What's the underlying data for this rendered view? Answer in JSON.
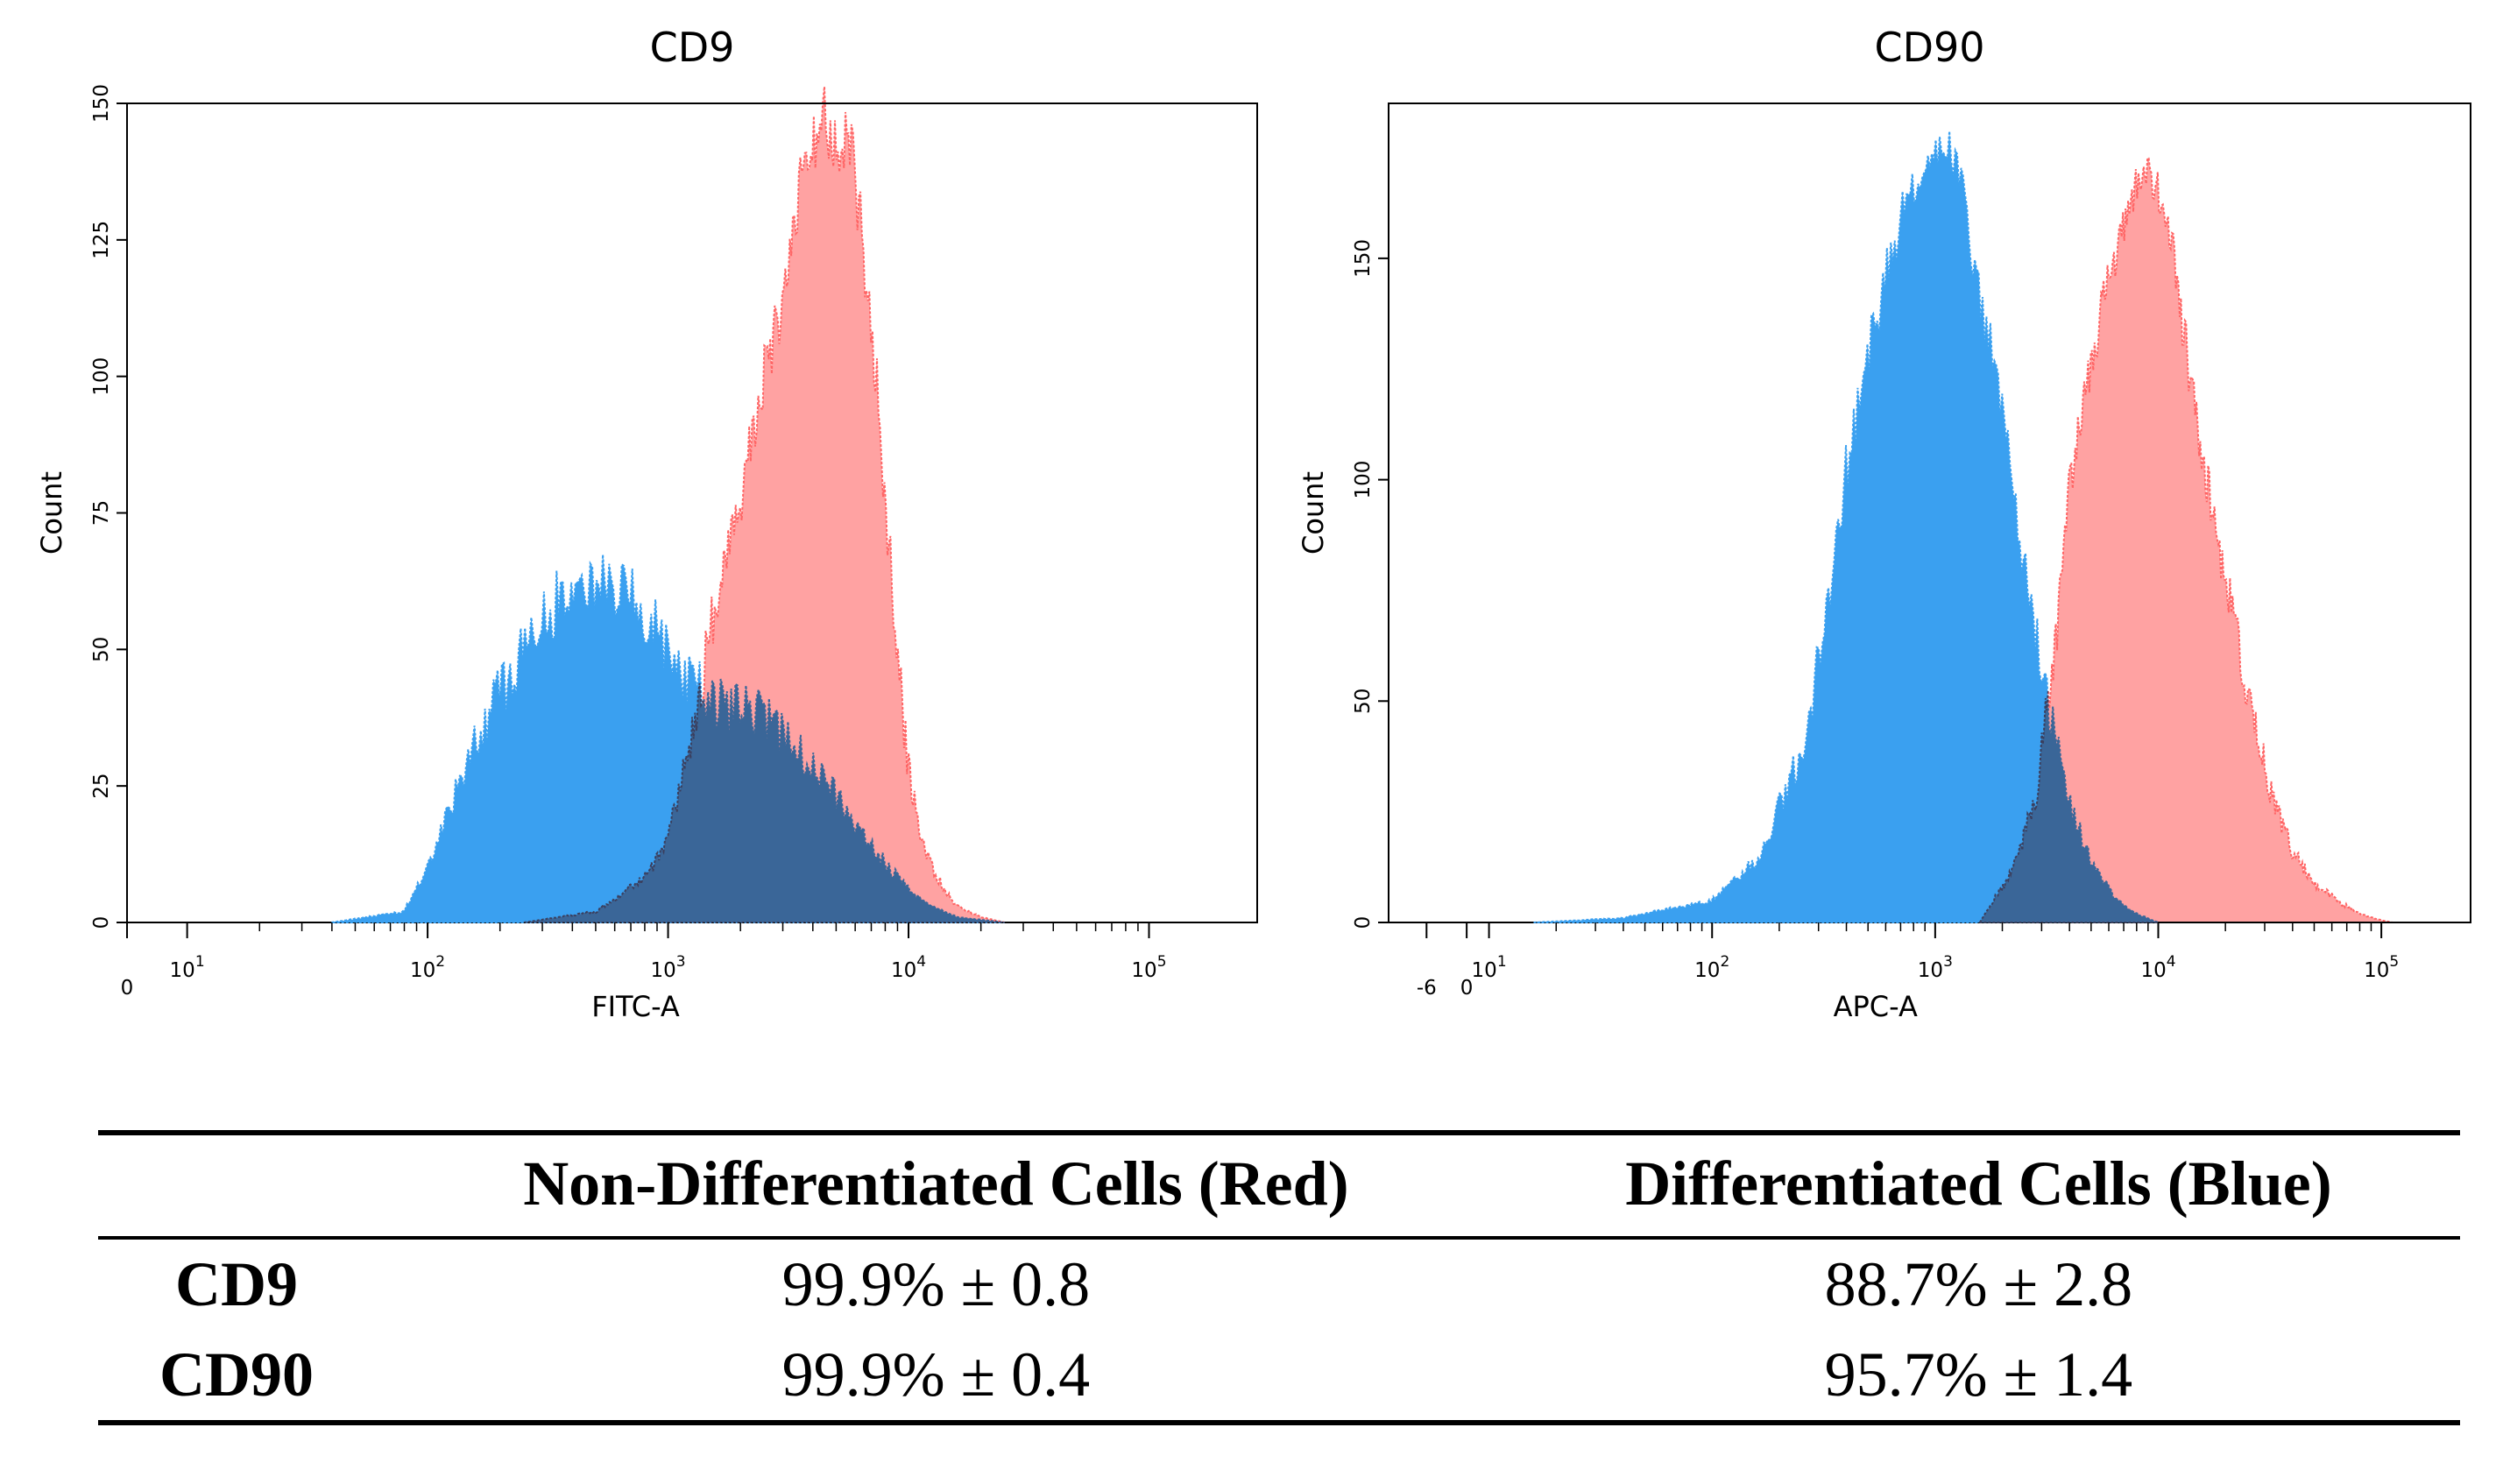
{
  "chart_data": [
    {
      "type": "area",
      "title": "CD9",
      "xlabel": "FITC-A",
      "ylabel": "Count",
      "xscale": "log",
      "xlim_log10": [
        0.75,
        5.45
      ],
      "ylim": [
        0,
        150
      ],
      "y_ticks": [
        "0",
        "25",
        "50",
        "75",
        "100",
        "125",
        "150"
      ],
      "x_ticks": [
        {
          "label": "0",
          "log": 0.75
        },
        {
          "label": "10",
          "sup": "1",
          "log": 1
        },
        {
          "label": "10",
          "sup": "2",
          "log": 2
        },
        {
          "label": "10",
          "sup": "3",
          "log": 3
        },
        {
          "label": "10",
          "sup": "4",
          "log": 4
        },
        {
          "label": "10",
          "sup": "5",
          "log": 5
        }
      ],
      "series": [
        {
          "name": "Differentiated Cells (Blue)",
          "color": "#3aa0f0",
          "x_log10": [
            1.6,
            1.9,
            2.0,
            2.1,
            2.2,
            2.3,
            2.4,
            2.5,
            2.6,
            2.7,
            2.8,
            2.9,
            3.0,
            3.1,
            3.2,
            3.3,
            3.4,
            3.5,
            3.6,
            3.7,
            3.8,
            3.9,
            4.0,
            4.1,
            4.2,
            4.3,
            4.4
          ],
          "values": [
            0,
            2,
            10,
            22,
            33,
            42,
            50,
            57,
            61,
            63,
            61,
            57,
            50,
            44,
            40,
            39,
            38,
            34,
            29,
            23,
            17,
            11,
            6,
            3,
            1,
            0.5,
            0
          ]
        },
        {
          "name": "Non-Differentiated Cells (Red)",
          "color": "#ff6464",
          "x_log10": [
            2.4,
            2.7,
            2.9,
            3.0,
            3.1,
            3.2,
            3.3,
            3.4,
            3.5,
            3.55,
            3.6,
            3.65,
            3.7,
            3.75,
            3.8,
            3.85,
            3.9,
            3.95,
            4.0,
            4.05,
            4.1,
            4.15,
            4.2,
            4.3,
            4.4
          ],
          "values": [
            0,
            2,
            8,
            15,
            35,
            58,
            78,
            100,
            118,
            135,
            142,
            148,
            140,
            146,
            128,
            108,
            80,
            50,
            28,
            16,
            10,
            6,
            3,
            1,
            0
          ]
        }
      ]
    },
    {
      "type": "area",
      "title": "CD90",
      "xlabel": "APC-A",
      "ylabel": "Count",
      "xscale": "log",
      "xlim_log10": [
        0.55,
        5.4
      ],
      "ylim": [
        0,
        185
      ],
      "y_ticks": [
        "0",
        "50",
        "100",
        "150"
      ],
      "x_ticks": [
        {
          "label": "-6",
          "log": 0.72
        },
        {
          "label": "0",
          "log": 0.9
        },
        {
          "label": "10",
          "sup": "1",
          "log": 1
        },
        {
          "label": "10",
          "sup": "2",
          "log": 2
        },
        {
          "label": "10",
          "sup": "3",
          "log": 3
        },
        {
          "label": "10",
          "sup": "4",
          "log": 4
        },
        {
          "label": "10",
          "sup": "5",
          "log": 5
        }
      ],
      "series": [
        {
          "name": "Differentiated Cells (Blue)",
          "color": "#3aa0f0",
          "x_log10": [
            1.2,
            1.6,
            2.0,
            2.2,
            2.4,
            2.5,
            2.6,
            2.7,
            2.8,
            2.85,
            2.9,
            3.0,
            3.05,
            3.1,
            3.15,
            3.2,
            3.3,
            3.4,
            3.5,
            3.6,
            3.7,
            3.8,
            3.9,
            4.0
          ],
          "values": [
            0,
            1,
            5,
            14,
            38,
            66,
            102,
            128,
            150,
            160,
            165,
            172,
            178,
            168,
            158,
            140,
            118,
            80,
            50,
            27,
            14,
            6,
            2,
            0
          ]
        },
        {
          "name": "Non-Differentiated Cells (Red)",
          "color": "#ff6464",
          "x_log10": [
            3.2,
            3.35,
            3.45,
            3.55,
            3.6,
            3.7,
            3.8,
            3.85,
            3.9,
            3.95,
            4.0,
            4.05,
            4.1,
            4.2,
            4.3,
            4.4,
            4.5,
            4.6,
            4.7,
            4.8,
            4.9,
            5.0,
            5.05
          ],
          "values": [
            0,
            12,
            28,
            68,
            98,
            128,
            150,
            160,
            168,
            170,
            164,
            156,
            138,
            105,
            78,
            53,
            30,
            16,
            9,
            5,
            2,
            0.5,
            0
          ]
        }
      ]
    }
  ],
  "table": {
    "headers": [
      "",
      "Non-Differentiated Cells (Red)",
      "Differentiated Cells (Blue)"
    ],
    "rows": [
      {
        "label": "CD9",
        "red": "99.9% ± 0.8",
        "blue": "88.7% ± 2.8"
      },
      {
        "label": "CD90",
        "red": "99.9% ± 0.4",
        "blue": "95.7% ± 1.4"
      }
    ]
  }
}
